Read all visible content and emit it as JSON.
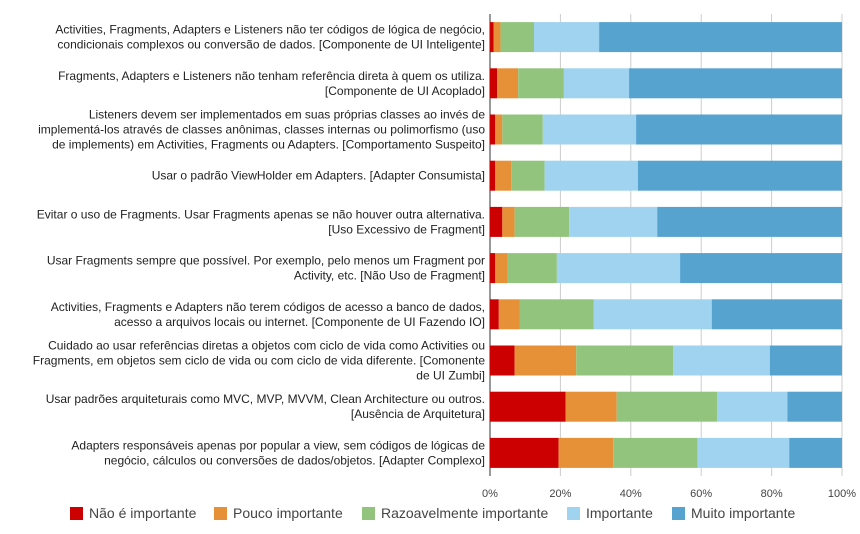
{
  "chart_data": {
    "type": "bar",
    "orientation": "horizontal",
    "stacked": "percent",
    "categories": [
      [
        "Activities, Fragments, Adapters e Listeners não ter códigos de lógica de negócio,",
        "condicionais complexos ou conversão de dados. [Componente de UI Inteligente]"
      ],
      [
        "Fragments, Adapters e Listeners não tenham referência direta à quem os utiliza.",
        "[Componente de UI Acoplado]"
      ],
      [
        "Listeners devem ser implementados em suas próprias classes ao invés de",
        "implementá-los através de classes anônimas, classes internas ou polimorfismo (uso",
        "de implements) em Activities, Fragments ou Adapters. [Comportamento Suspeito]"
      ],
      [
        "Usar o padrão ViewHolder em Adapters. [Adapter Consumista]"
      ],
      [
        "Evitar o uso de Fragments. Usar Fragments apenas se não houver outra alternativa.",
        "[Uso Excessivo de Fragment]"
      ],
      [
        "Usar Fragments sempre que possível. Por exemplo, pelo menos um Fragment por",
        "Activity, etc. [Não Uso de Fragment]"
      ],
      [
        "Activities, Fragments e Adapters não terem códigos de acesso a banco de dados,",
        "acesso a arquivos locais ou internet. [Componente de UI Fazendo IO]"
      ],
      [
        "Cuidado ao usar referências diretas a objetos com ciclo de vida como Activities ou",
        "Fragments, em objetos sem ciclo de vida ou com ciclo de vida diferente. [Comonente",
        "de UI Zumbi]"
      ],
      [
        "Usar padrões arquiteturais como MVC, MVP, MVVM, Clean Architecture ou outros.",
        "[Ausência de Arquitetura]"
      ],
      [
        "Adapters responsáveis apenas por popular a view, sem códigos de lógicas de",
        "negócio, cálculos ou conversões de dados/objetos. [Adapter Complexo]"
      ]
    ],
    "series": [
      {
        "name": "Não é importante",
        "color": "#cc0000",
        "values": [
          1,
          2,
          1.5,
          1.5,
          3.5,
          1.5,
          2.5,
          7,
          21.5,
          19.5
        ]
      },
      {
        "name": "Pouco importante",
        "color": "#e69138",
        "values": [
          2,
          6,
          2,
          4.5,
          3.5,
          3.5,
          6,
          17.5,
          14.5,
          15.5
        ]
      },
      {
        "name": "Razoavelmente importante",
        "color": "#93c47d",
        "values": [
          9.5,
          13,
          11.5,
          9.5,
          15.5,
          14,
          21,
          27.5,
          28.5,
          24
        ]
      },
      {
        "name": "Importante",
        "color": "#9fd3f0",
        "values": [
          18.5,
          18.5,
          26.5,
          26.5,
          25,
          35,
          33.5,
          27.5,
          20,
          26
        ]
      },
      {
        "name": "Muito importante",
        "color": "#57a3d0",
        "values": [
          69,
          60.5,
          58.5,
          58,
          52.5,
          46,
          37,
          20.5,
          15.5,
          15
        ]
      }
    ],
    "x_ticks": [
      "0%",
      "20%",
      "40%",
      "60%",
      "80%",
      "100%"
    ],
    "xlim": [
      0,
      100
    ],
    "legend_position": "bottom",
    "grid": true
  }
}
